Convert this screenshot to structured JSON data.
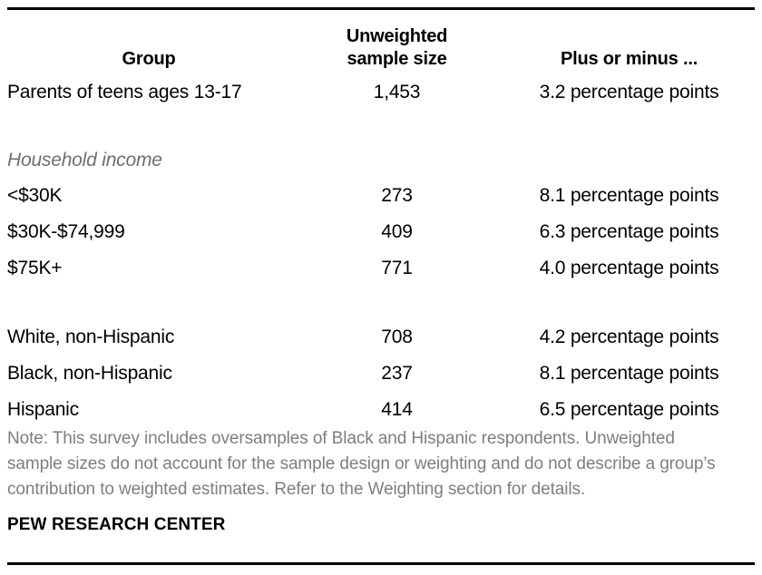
{
  "colors": {
    "rule": "#000000",
    "body_text": "#000000",
    "section_text": "#6e6e6e",
    "note_text": "#7e7e7e",
    "background": "#ffffff"
  },
  "table": {
    "columns": [
      "Group",
      "Unweighted sample size",
      "Plus or minus ..."
    ],
    "rows": [
      {
        "type": "data",
        "group": "Parents of teens ages 13-17",
        "size": "1,453",
        "moe": "3.2 percentage points"
      },
      {
        "type": "spacer"
      },
      {
        "type": "section",
        "group": "Household income"
      },
      {
        "type": "data",
        "group": "<$30K",
        "size": "273",
        "moe": "8.1 percentage points"
      },
      {
        "type": "data",
        "group": "$30K-$74,999",
        "size": "409",
        "moe": "6.3 percentage points"
      },
      {
        "type": "data",
        "group": "$75K+",
        "size": "771",
        "moe": "4.0 percentage points"
      },
      {
        "type": "spacer"
      },
      {
        "type": "data",
        "group": "White, non-Hispanic",
        "size": "708",
        "moe": "4.2 percentage points"
      },
      {
        "type": "data",
        "group": "Black, non-Hispanic",
        "size": "237",
        "moe": "8.1 percentage points"
      },
      {
        "type": "data",
        "group": "Hispanic",
        "size": "414",
        "moe": "6.5 percentage points"
      }
    ]
  },
  "note": "Note: This survey includes oversamples of Black and Hispanic respondents. Unweighted sample sizes do not account for the sample design or weighting and do not describe a group’s contribution to weighted estimates. Refer to the Weighting section for details.",
  "source": "PEW RESEARCH CENTER"
}
